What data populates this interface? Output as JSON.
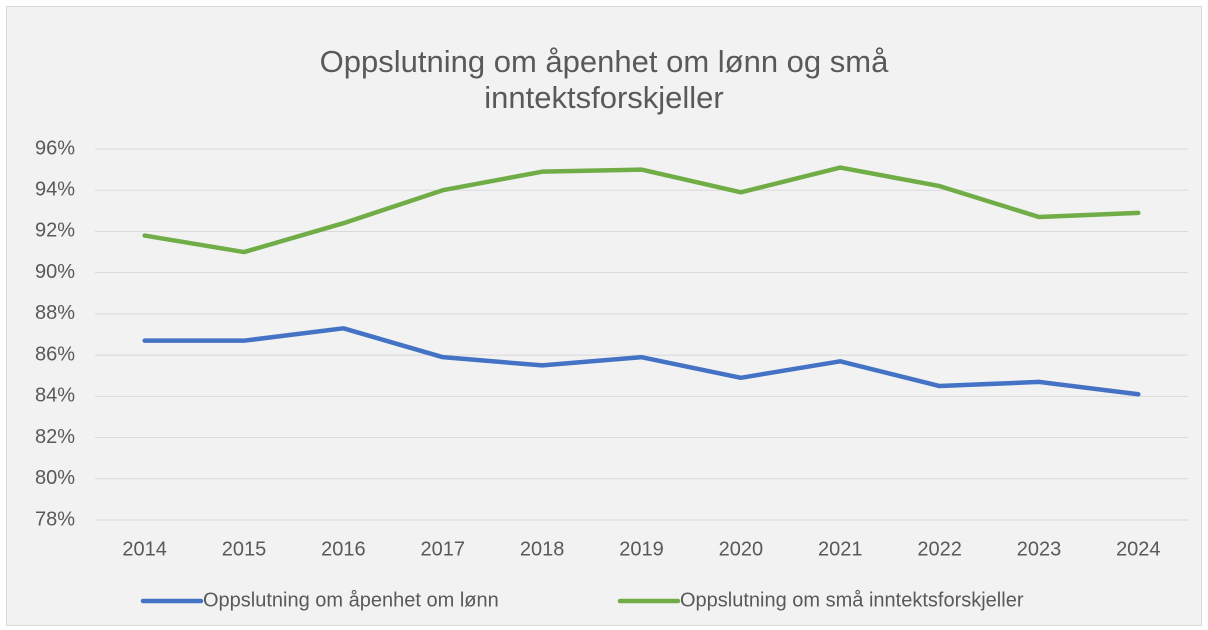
{
  "chart_data": {
    "type": "line",
    "title": "Oppslutning om åpenhet om lønn og små inntektsforskjeller",
    "categories": [
      "2014",
      "2015",
      "2016",
      "2017",
      "2018",
      "2019",
      "2020",
      "2021",
      "2022",
      "2023",
      "2024"
    ],
    "series": [
      {
        "name": "Oppslutning om åpenhet om lønn",
        "color": "#4472c4",
        "values": [
          86.7,
          86.7,
          87.3,
          85.9,
          85.5,
          85.9,
          84.9,
          85.7,
          84.5,
          84.7,
          84.1
        ]
      },
      {
        "name": "Oppslutning om små inntektsforskjeller",
        "color": "#70ad47",
        "values": [
          91.8,
          91.0,
          92.4,
          94.0,
          94.9,
          95.0,
          93.9,
          95.1,
          94.2,
          92.7,
          92.9
        ]
      }
    ],
    "ylim": [
      78,
      96
    ],
    "yticks": [
      {
        "value": 78,
        "label": "78%"
      },
      {
        "value": 80,
        "label": "80%"
      },
      {
        "value": 82,
        "label": "82%"
      },
      {
        "value": 84,
        "label": "84%"
      },
      {
        "value": 86,
        "label": "86%"
      },
      {
        "value": 88,
        "label": "88%"
      },
      {
        "value": 90,
        "label": "90%"
      },
      {
        "value": 92,
        "label": "92%"
      },
      {
        "value": 94,
        "label": "94%"
      },
      {
        "value": 96,
        "label": "96%"
      }
    ],
    "grid": true,
    "legend": "bottom"
  }
}
